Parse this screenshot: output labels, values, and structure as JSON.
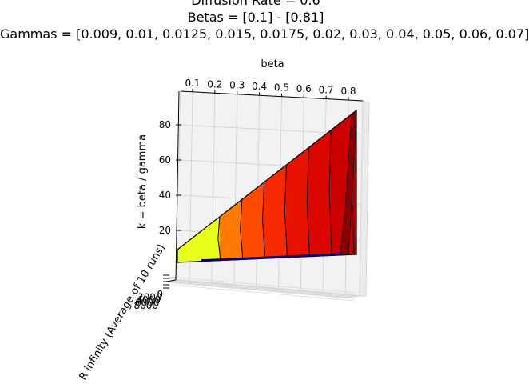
{
  "title": {
    "line1": "Diffusion Rate = 0.6",
    "line2": "Betas = [0.1] - [0.81]",
    "line3": "Gammas = [0.009, 0.01, 0.0125, 0.015, 0.0175, 0.02, 0.03, 0.04, 0.05, 0.06, 0.07]"
  },
  "chart_data": {
    "type": "surface3d",
    "colormap": "hot",
    "xlabel": "beta",
    "ylabel": "R infinity (Average of 10 runs)",
    "zlabel": "k = beta / gamma",
    "x_ticks": [
      "0.1",
      "0.2",
      "0.3",
      "0.4",
      "0.5",
      "0.6",
      "0.7",
      "0.8"
    ],
    "y_ticks": [
      "0",
      "2000",
      "4000",
      "6000",
      "8000"
    ],
    "z_ticks": [
      "20",
      "40",
      "60",
      "80"
    ],
    "beta_range": [
      0.1,
      0.81
    ],
    "k_range": [
      1,
      90
    ],
    "beta_contours": [
      0.2,
      0.3,
      0.4,
      0.5,
      0.6,
      0.7,
      0.8
    ],
    "band_colors": [
      "#e8ff1c",
      "#ff7b00",
      "#ff4a00",
      "#f52a00",
      "#e81200",
      "#dc0600",
      "#cc0000",
      "#b40000"
    ],
    "edge_color": "#000080",
    "grid": true
  }
}
